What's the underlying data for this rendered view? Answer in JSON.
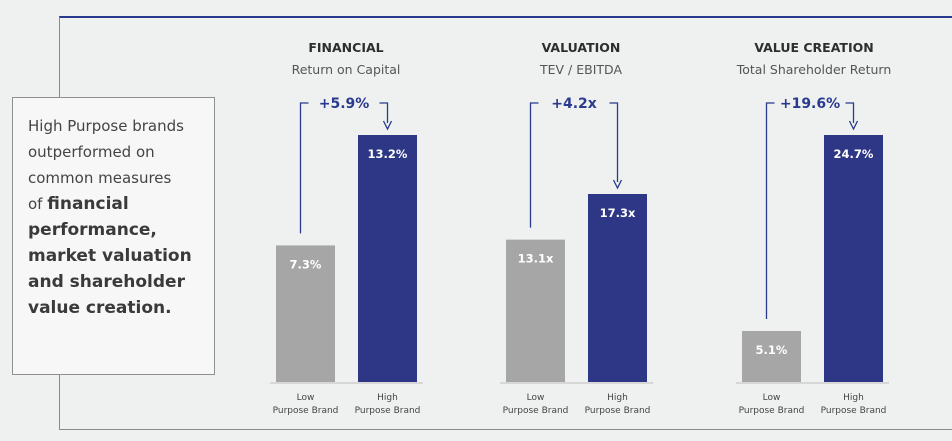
{
  "callout": {
    "line_normal": [
      "High Purpose brands",
      "outperformed on",
      "common measures",
      "of "
    ],
    "line_bold": [
      "financial",
      "performance,",
      "market valuation",
      "and shareholder",
      "value creation."
    ]
  },
  "colors": {
    "low": "#a6a6a6",
    "high": "#2d3785",
    "arrow": "#2a3a8f"
  },
  "chart_data": [
    {
      "type": "bar",
      "title": "FINANCIAL",
      "subtitle": "Return on Capital",
      "categories": [
        "Low Purpose Brand",
        "High Purpose Brand"
      ],
      "values": [
        7.3,
        13.2
      ],
      "labels": [
        "7.3%",
        "13.2%"
      ],
      "delta": "+5.9%"
    },
    {
      "type": "bar",
      "title": "VALUATION",
      "subtitle": "TEV / EBITDA",
      "categories": [
        "Low Purpose Brand",
        "High Purpose Brand"
      ],
      "values": [
        13.1,
        17.3
      ],
      "labels": [
        "13.1x",
        "17.3x"
      ],
      "delta": "+4.2x"
    },
    {
      "type": "bar",
      "title": "VALUE CREATION",
      "subtitle": "Total Shareholder Return",
      "categories": [
        "Low Purpose Brand",
        "High Purpose Brand"
      ],
      "values": [
        5.1,
        24.7
      ],
      "labels": [
        "5.1%",
        "24.7%"
      ],
      "delta": "+19.6%"
    }
  ]
}
